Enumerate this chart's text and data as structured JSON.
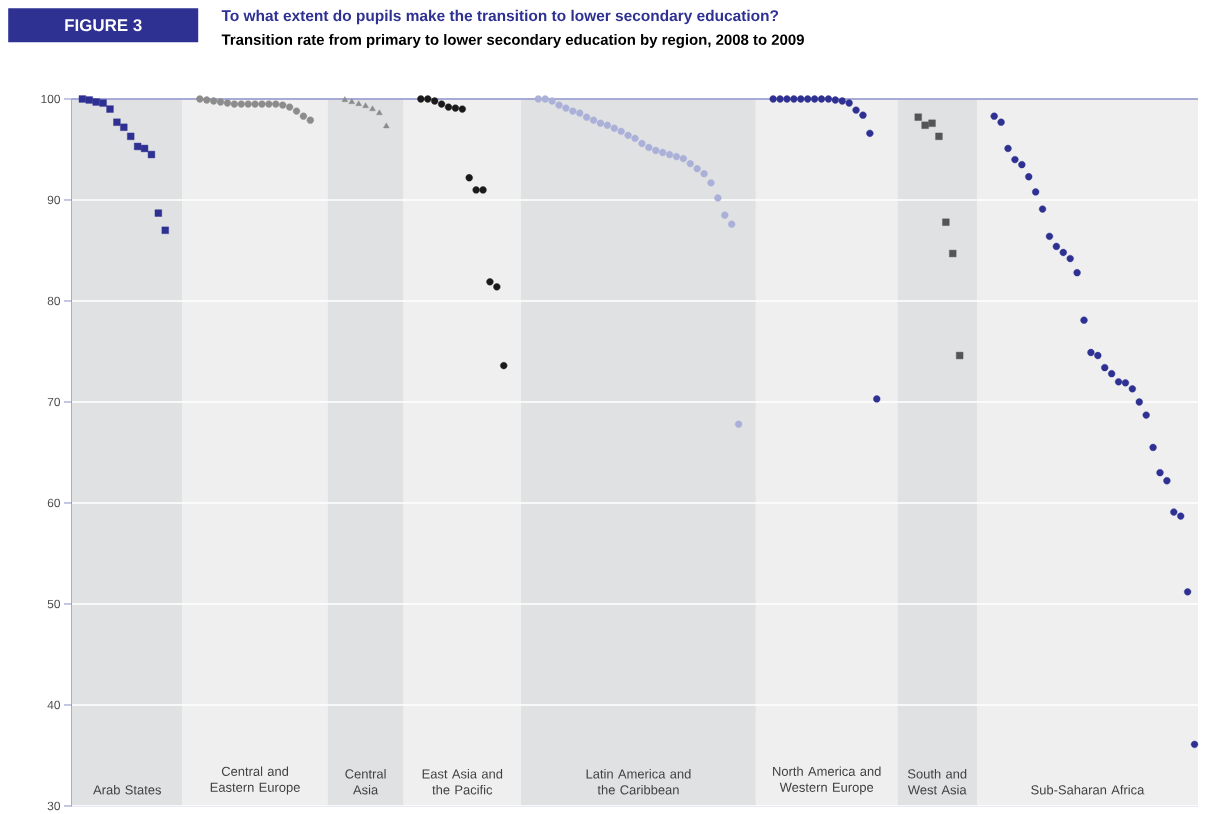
{
  "chart_data": {
    "type": "scatter",
    "title": "To what extent do pupils make the transition to lower secondary education?",
    "subtitle": "Transition rate from primary to lower secondary education by region, 2008 to 2009",
    "annotations": [
      "FIGURE 3",
      "Arab States",
      "Central and Eastern Europe",
      "Central Asia",
      "East Asia and the Pacific",
      "Latin America and the Caribbean",
      "North America and Western Europe",
      "South and West Asia",
      "Sub-Saharan Africa"
    ],
    "ylim": [
      30,
      100
    ],
    "yticks": [
      30,
      40,
      50,
      60,
      70,
      80,
      90,
      100
    ],
    "grid": "y",
    "tick_labels": "y",
    "categories": [
      null,
      null,
      null,
      null,
      null,
      null,
      null,
      null,
      null,
      null,
      null,
      null,
      null,
      null,
      null,
      null,
      null,
      null,
      null,
      null,
      null,
      null,
      null,
      null,
      null,
      null,
      null,
      null,
      null,
      null,
      null,
      null,
      null,
      null,
      null,
      null,
      null,
      null,
      null,
      null,
      null,
      null,
      null,
      null,
      null,
      null,
      null,
      null,
      null,
      null,
      null,
      null,
      null,
      null,
      null,
      null,
      null,
      null,
      null,
      null,
      null,
      null,
      null,
      null,
      null,
      null,
      null,
      null,
      null,
      null,
      null,
      null,
      null,
      null,
      null,
      null,
      null,
      null,
      null,
      null,
      null,
      null,
      null,
      null,
      null,
      null,
      null,
      null,
      null,
      null,
      null,
      null,
      null,
      null,
      null,
      null,
      null,
      null,
      null,
      null,
      null,
      null,
      null,
      null,
      null,
      null,
      null,
      null,
      null,
      null,
      null,
      null,
      null,
      null,
      null,
      null,
      null,
      null,
      null,
      null,
      null,
      null,
      null,
      null,
      null,
      null,
      null,
      null,
      null,
      null,
      null,
      null,
      null,
      null,
      null,
      null,
      null,
      null,
      null,
      null,
      null,
      null,
      null,
      null,
      null,
      null,
      null,
      null,
      null,
      null,
      null,
      null,
      null,
      null,
      null,
      null,
      null,
      null,
      null,
      null,
      null,
      null,
      null
    ],
    "series": [
      {
        "color": "#2e3192",
        "marker": "square",
        "values": [
          null,
          100,
          99.9,
          99.7,
          99.6,
          99.0,
          97.7,
          97.2,
          96.3,
          95.3,
          95.1,
          94.5,
          88.7,
          87.0,
          null,
          null,
          null,
          null,
          null,
          null,
          null,
          null,
          null,
          null,
          null,
          null,
          null,
          null,
          null,
          null,
          null,
          null,
          null,
          null,
          null,
          null,
          null,
          null,
          null,
          null,
          null,
          null,
          null,
          null,
          null,
          null,
          null,
          null,
          null,
          null,
          null,
          null,
          null,
          null,
          null,
          null,
          null,
          null,
          null,
          null,
          null,
          null,
          null,
          null,
          null,
          null,
          null,
          null,
          null,
          null,
          null,
          null,
          null,
          null,
          null,
          null,
          null,
          null,
          null,
          null,
          null,
          null,
          null,
          null,
          null,
          null,
          null,
          null,
          null,
          null,
          null,
          null,
          null,
          null,
          null,
          null,
          null,
          null,
          null,
          null,
          null,
          null,
          null,
          null,
          null,
          null,
          null,
          null,
          null,
          null,
          null,
          null,
          null,
          null,
          null,
          null,
          null,
          null,
          null,
          null,
          null,
          null,
          null,
          null,
          null,
          null,
          null,
          null,
          null,
          null,
          null,
          null,
          null,
          null,
          null,
          null,
          null,
          null,
          null,
          null,
          null,
          null,
          null,
          null,
          null,
          null,
          null,
          null,
          null,
          null,
          null,
          null,
          null,
          null,
          null,
          null,
          null,
          null,
          null,
          null,
          null,
          null,
          null
        ]
      },
      {
        "color": "#8c8c8c",
        "marker": "circle",
        "values": [
          null,
          null,
          null,
          null,
          null,
          null,
          null,
          null,
          null,
          null,
          null,
          null,
          null,
          null,
          null,
          null,
          null,
          null,
          100,
          99.9,
          99.8,
          99.7,
          99.6,
          99.5,
          99.5,
          99.5,
          99.5,
          99.5,
          99.5,
          99.5,
          99.4,
          99.2,
          98.8,
          98.3,
          97.9,
          null,
          null,
          null,
          null,
          null,
          null,
          null,
          null,
          null,
          null,
          null,
          null,
          null,
          null,
          null,
          null,
          null,
          null,
          null,
          null,
          null,
          null,
          null,
          null,
          null,
          null,
          null,
          null,
          null,
          null,
          null,
          null,
          null,
          null,
          null,
          null,
          null,
          null,
          null,
          null,
          null,
          null,
          null,
          null,
          null,
          null,
          null,
          null,
          null,
          null,
          null,
          null,
          null,
          null,
          null,
          null,
          null,
          null,
          null,
          null,
          null,
          null,
          null,
          null,
          null,
          null,
          null,
          null,
          null,
          null,
          null,
          null,
          null,
          null,
          null,
          null,
          null,
          null,
          null,
          null,
          null,
          null,
          null,
          null,
          null,
          null,
          null,
          null,
          null,
          null,
          null,
          null,
          null,
          null,
          null,
          null,
          null,
          null,
          null,
          null,
          null,
          null,
          null,
          null,
          null,
          null,
          null,
          null,
          null,
          null,
          null,
          null,
          null,
          null,
          null,
          null,
          null,
          null,
          null,
          null,
          null,
          null,
          null,
          null,
          null,
          null,
          null,
          null
        ]
      },
      {
        "color": "#8c8c8c",
        "marker": "triangle",
        "values": [
          null,
          null,
          null,
          null,
          null,
          null,
          null,
          null,
          null,
          null,
          null,
          null,
          null,
          null,
          null,
          null,
          null,
          null,
          null,
          null,
          null,
          null,
          null,
          null,
          null,
          null,
          null,
          null,
          null,
          null,
          null,
          null,
          null,
          null,
          null,
          null,
          null,
          null,
          null,
          99.9,
          99.7,
          99.5,
          99.3,
          99.0,
          98.6,
          97.3,
          null,
          null,
          null,
          null,
          null,
          null,
          null,
          null,
          null,
          null,
          null,
          null,
          null,
          null,
          null,
          null,
          null,
          null,
          null,
          null,
          null,
          null,
          null,
          null,
          null,
          null,
          null,
          null,
          null,
          null,
          null,
          null,
          null,
          null,
          null,
          null,
          null,
          null,
          null,
          null,
          null,
          null,
          null,
          null,
          null,
          null,
          null,
          null,
          null,
          null,
          null,
          null,
          null,
          null,
          null,
          null,
          null,
          null,
          null,
          null,
          null,
          null,
          null,
          null,
          null,
          null,
          null,
          null,
          null,
          null,
          null,
          null,
          null,
          null,
          null,
          null,
          null,
          null,
          null,
          null,
          null,
          null,
          null,
          null,
          null,
          null,
          null,
          null,
          null,
          null,
          null,
          null,
          null,
          null,
          null,
          null,
          null,
          null,
          null,
          null,
          null,
          null,
          null,
          null,
          null,
          null,
          null,
          null,
          null,
          null,
          null,
          null,
          null,
          null,
          null,
          null,
          null
        ]
      },
      {
        "color": "#1a1a1a",
        "marker": "circle",
        "values": [
          null,
          null,
          null,
          null,
          null,
          null,
          null,
          null,
          null,
          null,
          null,
          null,
          null,
          null,
          null,
          null,
          null,
          null,
          null,
          null,
          null,
          null,
          null,
          null,
          null,
          null,
          null,
          null,
          null,
          null,
          null,
          null,
          null,
          null,
          null,
          null,
          null,
          null,
          null,
          null,
          null,
          null,
          null,
          null,
          null,
          null,
          null,
          null,
          null,
          null,
          100,
          100,
          99.8,
          99.5,
          99.2,
          99.1,
          99.0,
          92.2,
          91.0,
          91.0,
          81.9,
          81.4,
          73.6,
          null,
          null,
          null,
          null,
          null,
          null,
          null,
          null,
          null,
          null,
          null,
          null,
          null,
          null,
          null,
          null,
          null,
          null,
          null,
          null,
          null,
          null,
          null,
          null,
          null,
          null,
          null,
          null,
          null,
          null,
          null,
          null,
          null,
          null,
          null,
          null,
          null,
          null,
          null,
          null,
          null,
          null,
          null,
          null,
          null,
          null,
          null,
          null,
          null,
          null,
          null,
          null,
          null,
          null,
          null,
          null,
          null,
          null,
          null,
          null,
          null,
          null,
          null,
          null,
          null,
          null,
          null,
          null,
          null,
          null,
          null,
          null,
          null,
          null,
          null,
          null,
          null,
          null,
          null,
          null,
          null,
          null,
          null,
          null,
          null,
          null,
          null,
          null,
          null,
          null,
          null,
          null,
          null,
          null,
          null,
          null,
          null,
          null,
          null,
          null
        ]
      },
      {
        "color": "#aab0d8",
        "marker": "circle",
        "values": [
          null,
          null,
          null,
          null,
          null,
          null,
          null,
          null,
          null,
          null,
          null,
          null,
          null,
          null,
          null,
          null,
          null,
          null,
          null,
          null,
          null,
          null,
          null,
          null,
          null,
          null,
          null,
          null,
          null,
          null,
          null,
          null,
          null,
          null,
          null,
          null,
          null,
          null,
          null,
          null,
          null,
          null,
          null,
          null,
          null,
          null,
          null,
          null,
          null,
          null,
          null,
          null,
          null,
          null,
          null,
          null,
          null,
          null,
          null,
          null,
          null,
          null,
          null,
          null,
          null,
          null,
          null,
          100,
          100,
          99.8,
          99.4,
          99.1,
          98.8,
          98.6,
          98.2,
          97.9,
          97.6,
          97.4,
          97.1,
          96.8,
          96.4,
          96.1,
          95.6,
          95.2,
          94.9,
          94.7,
          94.5,
          94.3,
          94.1,
          93.6,
          93.1,
          92.6,
          91.7,
          90.2,
          88.5,
          87.6,
          67.8,
          null,
          null,
          null,
          null,
          null,
          null,
          null,
          null,
          null,
          null,
          null,
          null,
          null,
          null,
          null,
          null,
          null,
          null,
          null,
          null,
          null,
          null,
          null,
          null,
          null,
          null,
          null,
          null,
          null,
          null,
          null,
          null,
          null,
          null,
          null,
          null,
          null,
          null,
          null,
          null,
          null,
          null,
          null,
          null,
          null,
          null,
          null,
          null,
          null,
          null,
          null,
          null,
          null,
          null,
          null,
          null,
          null,
          null,
          null,
          null,
          null,
          null,
          null,
          null,
          null,
          null
        ]
      },
      {
        "color": "#2e3192",
        "marker": "circle",
        "values": [
          null,
          null,
          null,
          null,
          null,
          null,
          null,
          null,
          null,
          null,
          null,
          null,
          null,
          null,
          null,
          null,
          null,
          null,
          null,
          null,
          null,
          null,
          null,
          null,
          null,
          null,
          null,
          null,
          null,
          null,
          null,
          null,
          null,
          null,
          null,
          null,
          null,
          null,
          null,
          null,
          null,
          null,
          null,
          null,
          null,
          null,
          null,
          null,
          null,
          null,
          null,
          null,
          null,
          null,
          null,
          null,
          null,
          null,
          null,
          null,
          null,
          null,
          null,
          null,
          null,
          null,
          null,
          null,
          null,
          null,
          null,
          null,
          null,
          null,
          null,
          null,
          null,
          null,
          null,
          null,
          null,
          null,
          null,
          null,
          null,
          null,
          null,
          null,
          null,
          null,
          null,
          null,
          null,
          null,
          null,
          null,
          null,
          null,
          null,
          null,
          null,
          100,
          100,
          100,
          100,
          100,
          100,
          100,
          100,
          100,
          99.9,
          99.8,
          99.6,
          98.9,
          98.4,
          96.6,
          70.3,
          null,
          null,
          null,
          null,
          null,
          null,
          null,
          null,
          null,
          null,
          null,
          null,
          null,
          null,
          null,
          null,
          null,
          null,
          null,
          null,
          null,
          null,
          null,
          null,
          null,
          null,
          null,
          null,
          null,
          null,
          null,
          null,
          null,
          null,
          null,
          null,
          null,
          null,
          null,
          null,
          null,
          null,
          null,
          null,
          null,
          null
        ]
      },
      {
        "color": "#555555",
        "marker": "square",
        "values": [
          null,
          null,
          null,
          null,
          null,
          null,
          null,
          null,
          null,
          null,
          null,
          null,
          null,
          null,
          null,
          null,
          null,
          null,
          null,
          null,
          null,
          null,
          null,
          null,
          null,
          null,
          null,
          null,
          null,
          null,
          null,
          null,
          null,
          null,
          null,
          null,
          null,
          null,
          null,
          null,
          null,
          null,
          null,
          null,
          null,
          null,
          null,
          null,
          null,
          null,
          null,
          null,
          null,
          null,
          null,
          null,
          null,
          null,
          null,
          null,
          null,
          null,
          null,
          null,
          null,
          null,
          null,
          null,
          null,
          null,
          null,
          null,
          null,
          null,
          null,
          null,
          null,
          null,
          null,
          null,
          null,
          null,
          null,
          null,
          null,
          null,
          null,
          null,
          null,
          null,
          null,
          null,
          null,
          null,
          null,
          null,
          null,
          null,
          null,
          null,
          null,
          null,
          null,
          null,
          null,
          null,
          null,
          null,
          null,
          null,
          null,
          null,
          null,
          null,
          null,
          null,
          null,
          null,
          null,
          null,
          null,
          null,
          98.2,
          97.4,
          97.6,
          96.3,
          87.8,
          84.7,
          74.6,
          null,
          null,
          null,
          null,
          null,
          null,
          null,
          null,
          null,
          null,
          null,
          null,
          null,
          null,
          null,
          null,
          null,
          null,
          null,
          null,
          null,
          null,
          null,
          null,
          null,
          null,
          null,
          null,
          null,
          null,
          null,
          null,
          null,
          null
        ]
      },
      {
        "color": "#2e3192",
        "marker": "circle",
        "values": [
          null,
          null,
          null,
          null,
          null,
          null,
          null,
          null,
          null,
          null,
          null,
          null,
          null,
          null,
          null,
          null,
          null,
          null,
          null,
          null,
          null,
          null,
          null,
          null,
          null,
          null,
          null,
          null,
          null,
          null,
          null,
          null,
          null,
          null,
          null,
          null,
          null,
          null,
          null,
          null,
          null,
          null,
          null,
          null,
          null,
          null,
          null,
          null,
          null,
          null,
          null,
          null,
          null,
          null,
          null,
          null,
          null,
          null,
          null,
          null,
          null,
          null,
          null,
          null,
          null,
          null,
          null,
          null,
          null,
          null,
          null,
          null,
          null,
          null,
          null,
          null,
          null,
          null,
          null,
          null,
          null,
          null,
          null,
          null,
          null,
          null,
          null,
          null,
          null,
          null,
          null,
          null,
          null,
          null,
          null,
          null,
          null,
          null,
          null,
          null,
          null,
          null,
          null,
          null,
          null,
          null,
          null,
          null,
          null,
          null,
          null,
          null,
          null,
          null,
          null,
          null,
          null,
          null,
          null,
          null,
          null,
          null,
          null,
          null,
          null,
          null,
          null,
          null,
          null,
          null,
          null,
          null,
          null,
          98.3,
          97.7,
          95.1,
          94.0,
          93.5,
          92.3,
          90.8,
          89.1,
          86.4,
          85.4,
          84.8,
          84.2,
          82.8,
          78.1,
          74.9,
          74.6,
          73.4,
          72.8,
          72.0,
          71.9,
          71.3,
          70.0,
          68.7,
          65.5,
          63.0,
          62.2,
          59.1,
          58.7,
          51.2,
          36.1
        ]
      }
    ]
  }
}
